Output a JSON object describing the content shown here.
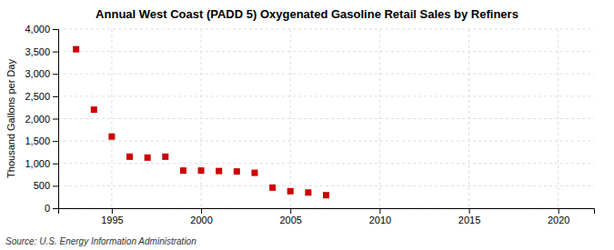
{
  "chart_data": {
    "type": "scatter",
    "title": "Annual West Coast (PADD 5) Oxygenated Gasoline Retail Sales by Refiners",
    "y_label": "Thousand Gallons per Day",
    "source": "Source: U.S. Energy Information Administration",
    "x": [
      1993,
      1994,
      1995,
      1996,
      1997,
      1998,
      1999,
      2000,
      2001,
      2002,
      2003,
      2004,
      2005,
      2006,
      2007
    ],
    "values": [
      3550,
      2200,
      1600,
      1150,
      1130,
      1150,
      840,
      840,
      830,
      820,
      790,
      460,
      380,
      350,
      290
    ],
    "color": "#cc0000",
    "marker": "square",
    "xlim": [
      1992,
      2022
    ],
    "ylim": [
      0,
      4000
    ],
    "xticks": [
      1995,
      2000,
      2005,
      2010,
      2015,
      2020
    ],
    "yticks": [
      0,
      500,
      {
        "value": 1000,
        "label": "1,000"
      },
      {
        "value": 1500,
        "label": "1,500"
      },
      {
        "value": 2000,
        "label": "2,000"
      },
      {
        "value": 2500,
        "label": "2,500"
      },
      {
        "value": 3000,
        "label": "3,000"
      },
      {
        "value": 3500,
        "label": "3,500"
      },
      {
        "value": 4000,
        "label": "4,000"
      }
    ],
    "grid": true
  }
}
